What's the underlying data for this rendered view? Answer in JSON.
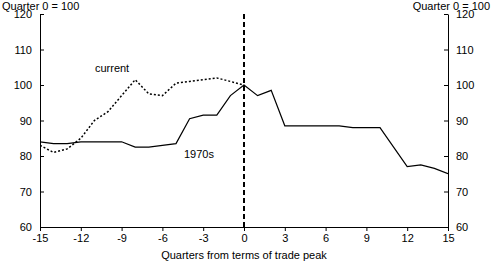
{
  "chart_data": {
    "type": "line",
    "x_label": "Quarters from terms of trade peak",
    "y_label": "Quarter 0 = 100",
    "y2_label": "Quarter 0 = 100",
    "x": [
      -15,
      -14,
      -13,
      -12,
      -11,
      -10,
      -9,
      -8,
      -7,
      -6,
      -5,
      -4,
      -3,
      -2,
      -1,
      0,
      1,
      2,
      3,
      4,
      5,
      6,
      7,
      8,
      9,
      10,
      11,
      12,
      13,
      14,
      15
    ],
    "series": [
      {
        "name": "current",
        "color": "#000000",
        "line_style": "dotted",
        "values": [
          83,
          81,
          82,
          85,
          90,
          92.5,
          97,
          101.5,
          97.5,
          97,
          100.5,
          101,
          101.5,
          102,
          101,
          100,
          null,
          null,
          null,
          null,
          null,
          null,
          null,
          null,
          null,
          null,
          null,
          null,
          null,
          null,
          null
        ]
      },
      {
        "name": "1970s",
        "color": "#000000",
        "line_style": "solid",
        "values": [
          84,
          83.5,
          83.5,
          84,
          84,
          84,
          84,
          82.5,
          82.5,
          83,
          83.5,
          90.5,
          91.5,
          91.5,
          97,
          100,
          97,
          98.5,
          88.5,
          88.5,
          88.5,
          88.5,
          88.5,
          88,
          88,
          88,
          82.5,
          77,
          77.5,
          76.5,
          75
        ]
      }
    ],
    "vline": 0,
    "xlim": [
      -15,
      15
    ],
    "xticks": [
      -15,
      -12,
      -9,
      -6,
      -3,
      0,
      3,
      6,
      9,
      12,
      15
    ],
    "ylim": [
      60,
      120
    ],
    "yticks": [
      60,
      70,
      80,
      90,
      100,
      110,
      120
    ],
    "y2lim": [
      60,
      120
    ],
    "y2ticks": [
      60,
      70,
      80,
      90,
      100,
      110,
      120
    ],
    "grid": false
  }
}
